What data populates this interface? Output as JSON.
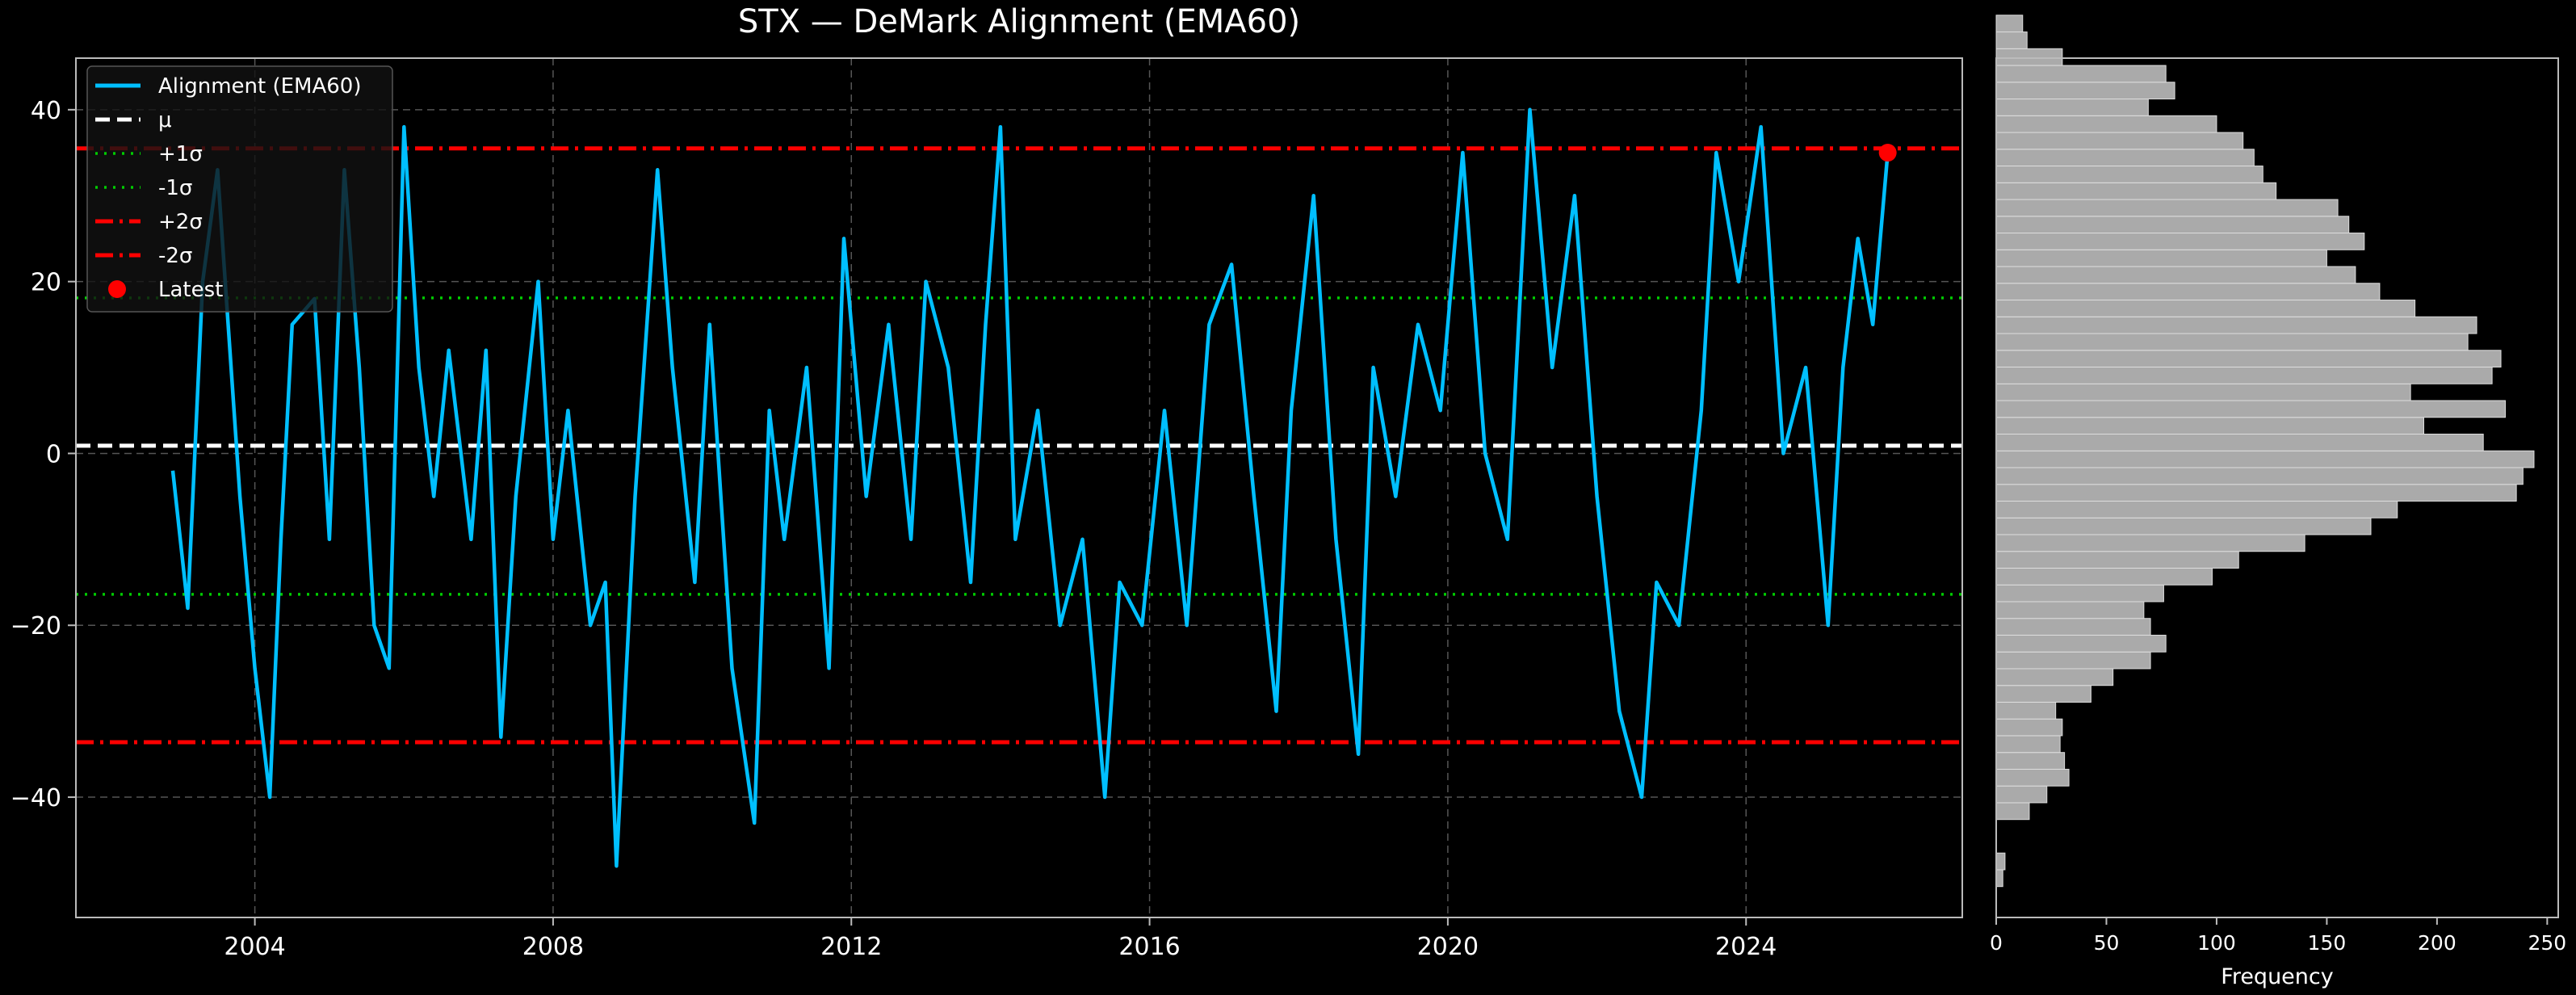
{
  "chart_data": [
    {
      "type": "line",
      "title": "STX — DeMark Alignment (EMA60)",
      "xlabel": "",
      "ylabel": "",
      "xlim": [
        2001.6,
        2026.9
      ],
      "ylim": [
        -54,
        46
      ],
      "x_ticks": [
        2004,
        2008,
        2012,
        2016,
        2020,
        2024
      ],
      "y_ticks": [
        -40,
        -20,
        0,
        20,
        40
      ],
      "grid": true,
      "legend_position": "top-left",
      "colors": {
        "series": "#00bfff",
        "mean": "#ffffff",
        "sigma1": "#00cc00",
        "sigma2": "#ff0000",
        "latest": "#ff0000",
        "grid": "#555555",
        "axes": "#bbbbbb"
      },
      "reference_lines": {
        "mean": 0.9,
        "plus_1_sigma": 18.1,
        "minus_1_sigma": -16.4,
        "plus_2_sigma": 35.5,
        "minus_2_sigma": -33.6
      },
      "legend": [
        {
          "label": "Alignment (EMA60)",
          "style": "solid",
          "color": "#00bfff"
        },
        {
          "label": "μ",
          "style": "dashed",
          "color": "#ffffff"
        },
        {
          "label": "+1σ",
          "style": "dotted",
          "color": "#00cc00"
        },
        {
          "label": "-1σ",
          "style": "dotted",
          "color": "#00cc00"
        },
        {
          "label": "+2σ",
          "style": "dashdot",
          "color": "#ff0000"
        },
        {
          "label": "-2σ",
          "style": "dashdot",
          "color": "#ff0000"
        },
        {
          "label": "Latest",
          "style": "marker",
          "color": "#ff0000"
        }
      ],
      "latest_point": {
        "x": 2025.9,
        "y": 35.0
      },
      "series": [
        {
          "name": "Alignment (EMA60)",
          "x": [
            2002.9,
            2003.1,
            2003.3,
            2003.5,
            2003.8,
            2004.0,
            2004.2,
            2004.35,
            2004.5,
            2004.8,
            2005.0,
            2005.2,
            2005.4,
            2005.6,
            2005.8,
            2006.0,
            2006.2,
            2006.4,
            2006.6,
            2006.9,
            2007.1,
            2007.3,
            2007.5,
            2007.8,
            2008.0,
            2008.2,
            2008.5,
            2008.7,
            2008.85,
            2009.1,
            2009.4,
            2009.6,
            2009.9,
            2010.1,
            2010.4,
            2010.7,
            2010.9,
            2011.1,
            2011.4,
            2011.7,
            2011.9,
            2012.2,
            2012.5,
            2012.8,
            2013.0,
            2013.3,
            2013.6,
            2013.8,
            2014.0,
            2014.2,
            2014.5,
            2014.8,
            2015.1,
            2015.4,
            2015.6,
            2015.9,
            2016.2,
            2016.5,
            2016.8,
            2017.1,
            2017.4,
            2017.7,
            2017.9,
            2018.2,
            2018.5,
            2018.8,
            2019.0,
            2019.3,
            2019.6,
            2019.9,
            2020.2,
            2020.5,
            2020.8,
            2021.1,
            2021.4,
            2021.7,
            2022.0,
            2022.3,
            2022.6,
            2022.8,
            2023.1,
            2023.4,
            2023.6,
            2023.9,
            2024.2,
            2024.5,
            2024.8,
            2025.1,
            2025.3,
            2025.5,
            2025.7,
            2025.9
          ],
          "y": [
            -2,
            -18,
            20,
            33,
            -5,
            -25,
            -40,
            -10,
            15,
            18,
            -10,
            33,
            10,
            -20,
            -25,
            38,
            10,
            -5,
            12,
            -10,
            12,
            -33,
            -5,
            20,
            -10,
            5,
            -20,
            -15,
            -48,
            -5,
            33,
            10,
            -15,
            15,
            -25,
            -43,
            5,
            -10,
            10,
            -25,
            25,
            -5,
            15,
            -10,
            20,
            10,
            -15,
            15,
            38,
            -10,
            5,
            -20,
            -10,
            -40,
            -15,
            -20,
            5,
            -20,
            15,
            22,
            -5,
            -30,
            5,
            30,
            -10,
            -35,
            10,
            -5,
            15,
            5,
            35,
            0,
            -10,
            40,
            10,
            30,
            -5,
            -30,
            -40,
            -15,
            -20,
            5,
            35,
            20,
            38,
            0,
            10,
            -20,
            10,
            25,
            15,
            35
          ]
        }
      ]
    },
    {
      "type": "bar",
      "orientation": "horizontal",
      "xlabel": "Frequency",
      "ylabel": "",
      "xlim": [
        0,
        255
      ],
      "x_ticks": [
        0,
        50,
        100,
        150,
        200,
        250
      ],
      "colors": {
        "bar": "#aaaaaa",
        "edge": "#dddddd"
      },
      "bin_width": 1.95,
      "bin_start": -50.4,
      "counts": [
        3,
        4,
        0,
        0,
        15,
        23,
        33,
        31,
        29,
        30,
        27,
        43,
        53,
        70,
        77,
        70,
        67,
        76,
        98,
        110,
        140,
        170,
        182,
        236,
        239,
        244,
        221,
        194,
        231,
        188,
        225,
        229,
        214,
        218,
        190,
        174,
        163,
        150,
        167,
        160,
        155,
        127,
        121,
        117,
        112,
        100,
        69,
        81,
        77,
        30,
        14,
        12
      ]
    }
  ]
}
